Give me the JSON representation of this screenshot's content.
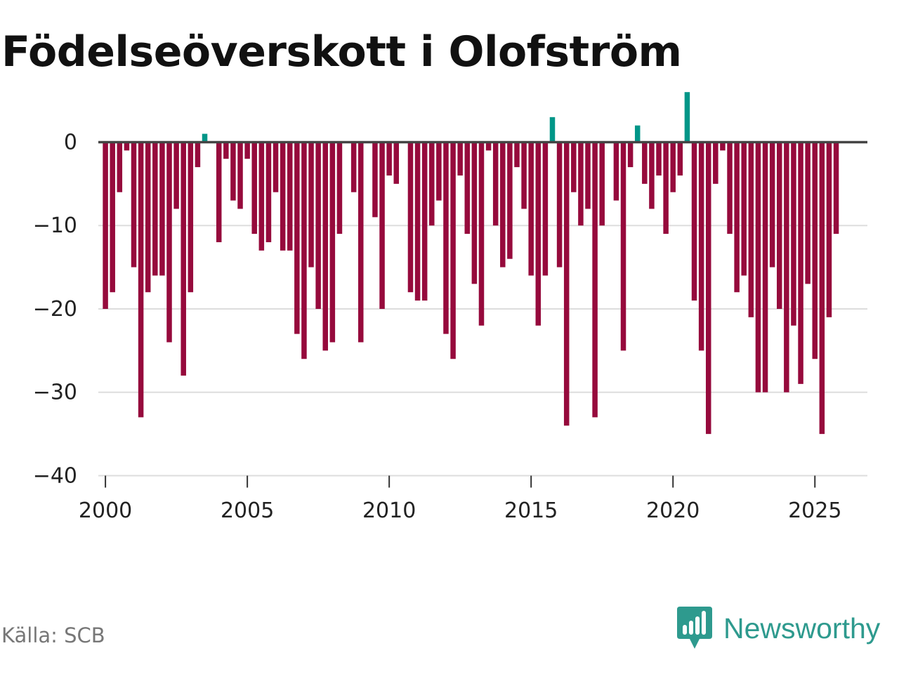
{
  "title": "Födelseöverskott i Olofström",
  "source": "Källa: SCB",
  "brand": {
    "name": "Newsworthy",
    "logo_icon": "newsworthy-bar-chart-speech-bubble-icon"
  },
  "colors": {
    "positive": "#009688",
    "negative": "#960a3c",
    "zero_line": "#444444",
    "grid": "#dddddd",
    "brand": "#2e9a8e"
  },
  "chart_data": {
    "type": "bar",
    "title": "Födelseöverskott i Olofström",
    "xlabel": "",
    "ylabel": "",
    "ylim": [
      -40,
      6
    ],
    "xlim": [
      1999.75,
      2026.85
    ],
    "y_ticks": [
      0,
      -10,
      -20,
      -30,
      -40
    ],
    "y_tick_labels": [
      "0",
      "−10",
      "−20",
      "−30",
      "−40"
    ],
    "x_ticks": [
      2000,
      2005,
      2010,
      2015,
      2020,
      2025
    ],
    "x_tick_labels": [
      "2000",
      "2005",
      "2010",
      "2015",
      "2020",
      "2025"
    ],
    "grid": true,
    "legend": "none",
    "frequency": "quarterly",
    "start": 2000.0,
    "step": 0.25,
    "series": [
      {
        "name": "Födelseöverskott",
        "values": [
          -20,
          -18,
          -6,
          -1,
          -15,
          -33,
          -18,
          -16,
          -16,
          -24,
          -8,
          -28,
          -18,
          -3,
          1,
          0,
          -12,
          -2,
          -7,
          -8,
          -2,
          -11,
          -13,
          -12,
          -6,
          -13,
          -13,
          -23,
          -26,
          -15,
          -20,
          -25,
          -24,
          -11,
          0,
          -6,
          -24,
          0,
          -9,
          -20,
          -4,
          -5,
          0,
          -18,
          -19,
          -19,
          -10,
          -7,
          -23,
          -26,
          -4,
          -11,
          -17,
          -22,
          -1,
          -10,
          -15,
          -14,
          -3,
          -8,
          -16,
          -22,
          -16,
          3,
          -15,
          -34,
          -6,
          -10,
          -8,
          -33,
          -10,
          0,
          -7,
          -25,
          -3,
          2,
          -5,
          -8,
          -4,
          -11,
          -6,
          -4,
          6,
          -19,
          -25,
          -35,
          -5,
          -1,
          -11,
          -18,
          -16,
          -21,
          -30,
          -30,
          -15,
          -20,
          -30,
          -22,
          -29,
          -17,
          -26,
          -35,
          -21,
          -11
        ]
      }
    ]
  }
}
